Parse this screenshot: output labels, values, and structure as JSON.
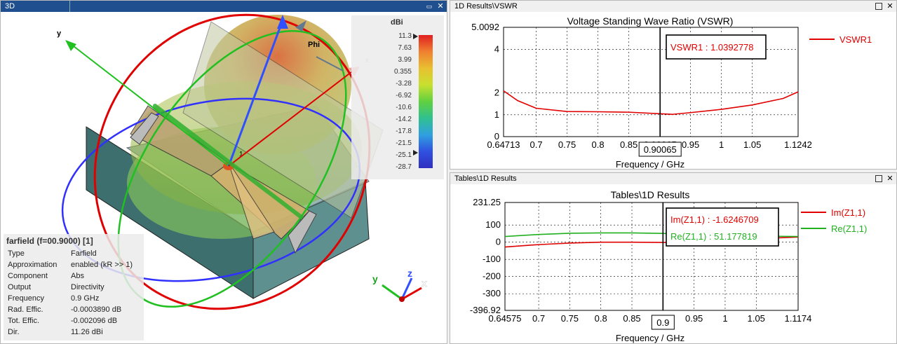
{
  "panel3d": {
    "title": "3D",
    "colorbar": {
      "unit": "dBi",
      "ticks": [
        "11.3",
        "7.63",
        "3.99",
        "0.355",
        "-3.28",
        "-6.92",
        "-10.6",
        "-14.2",
        "-17.8",
        "-21.5",
        "-25.1",
        "-28.7"
      ]
    },
    "axes": {
      "y_label": "y",
      "phi_label": "Phi",
      "x_label": "x",
      "port_label": "1"
    },
    "triad": {
      "x": "x",
      "y": "y",
      "z": "z"
    },
    "info": {
      "header": "farfield (f=00.9000) [1]",
      "rows": [
        {
          "k": "Type",
          "v": "Farfield"
        },
        {
          "k": "Approximation",
          "v": "enabled (kR >> 1)"
        },
        {
          "k": "Component",
          "v": "Abs"
        },
        {
          "k": "Output",
          "v": "Directivity"
        },
        {
          "k": "Frequency",
          "v": "0.9 GHz"
        },
        {
          "k": "Rad. Effic.",
          "v": "-0.0003890 dB"
        },
        {
          "k": "Tot. Effic.",
          "v": "-0.002096 dB"
        },
        {
          "k": "Dir.",
          "v": "11.26 dBi"
        }
      ]
    }
  },
  "vswr_panel": {
    "title": "1D Results\\VSWR",
    "chart_title": "Voltage Standing Wave Ratio (VSWR)",
    "xlabel": "Frequency / GHz",
    "marker_label": "VSWR1 : 1.0392778",
    "marker_x_label": "0.90065",
    "legend": "VSWR1"
  },
  "tables_panel": {
    "title": "Tables\\1D Results",
    "chart_title": "Tables\\1D Results",
    "xlabel": "Frequency / GHz",
    "marker_im_label": "Im(Z1,1) : -1.6246709",
    "marker_re_label": "Re(Z1,1) : 51.177819",
    "marker_x_label": "0.9",
    "legend_im": "Im(Z1,1)",
    "legend_re": "Re(Z1,1)"
  },
  "chart_data": [
    {
      "type": "line",
      "title": "Voltage Standing Wave Ratio (VSWR)",
      "xlabel": "Frequency / GHz",
      "ylabel": "",
      "xlim": [
        0.64713,
        1.1242
      ],
      "ylim": [
        0,
        5.0092
      ],
      "xticks": [
        "0.64713",
        "0.7",
        "0.75",
        "0.8",
        "0.85",
        "0.90065",
        "0.95",
        "1",
        "1.05",
        "1.1242"
      ],
      "yticks": [
        "0",
        "1",
        "2",
        "4",
        "5.0092"
      ],
      "grid": true,
      "legend_position": "right",
      "color": "#e00000",
      "series": [
        {
          "name": "VSWR1",
          "x": [
            0.64713,
            0.67,
            0.7,
            0.75,
            0.8,
            0.85,
            0.9,
            0.92,
            0.95,
            1.0,
            1.05,
            1.1,
            1.1242
          ],
          "y": [
            2.1,
            1.65,
            1.3,
            1.15,
            1.14,
            1.12,
            1.05,
            1.02,
            1.1,
            1.25,
            1.45,
            1.75,
            2.05
          ]
        }
      ],
      "marker": {
        "x": 0.90065,
        "label": "VSWR1 : 1.0392778"
      }
    },
    {
      "type": "line",
      "title": "Tables\\1D Results",
      "xlabel": "Frequency / GHz",
      "ylabel": "",
      "xlim": [
        0.64575,
        1.1174
      ],
      "ylim": [
        -396.92,
        231.25
      ],
      "xticks": [
        "0.64575",
        "0.7",
        "0.75",
        "0.8",
        "0.85",
        "0.9",
        "0.95",
        "1",
        "1.05",
        "1.1174"
      ],
      "yticks": [
        "231.25",
        "100",
        "0",
        "-100",
        "-200",
        "-300",
        "-396.92"
      ],
      "grid": true,
      "legend_position": "right",
      "series": [
        {
          "name": "Im(Z1,1)",
          "color": "#e00000",
          "x": [
            0.64575,
            0.7,
            0.75,
            0.8,
            0.85,
            0.9,
            0.95,
            1.0,
            1.05,
            1.1174
          ],
          "y": [
            -28,
            -14,
            -5,
            0,
            0,
            -1.6,
            1,
            10,
            20,
            30
          ]
        },
        {
          "name": "Re(Z1,1)",
          "color": "#20b020",
          "x": [
            0.64575,
            0.7,
            0.75,
            0.8,
            0.85,
            0.9,
            0.95,
            1.0,
            1.05,
            1.1174
          ],
          "y": [
            33,
            45,
            52,
            54,
            54,
            51,
            45,
            40,
            35,
            33
          ]
        }
      ],
      "marker": {
        "x": 0.9,
        "labels": [
          "Im(Z1,1) : -1.6246709",
          "Re(Z1,1) : 51.177819"
        ]
      }
    }
  ]
}
